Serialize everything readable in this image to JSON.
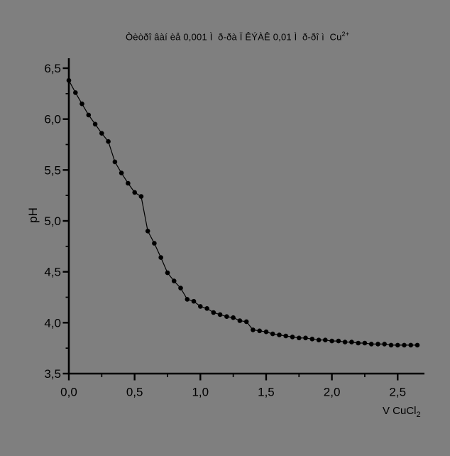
{
  "colors": {
    "background": "#7f7f7f",
    "foreground": "#000000"
  },
  "chart": {
    "title": {
      "text": "Òèòðî âàí èå 0,001 Ì  ð-ðà Ï ÊÝÀÊ 0,01 Ì  ð-ðî ì  Cu",
      "superscript": "2+"
    },
    "ylabel": "pH",
    "xlabel": {
      "text": "V CuCl",
      "subscript": "2"
    }
  },
  "chart_data": {
    "type": "line",
    "title": "Òèòðî âàí èå 0,001 Ì ð-ðà Ï ÊÝÀÊ 0,01 Ì ð-ðî ì Cu2+",
    "xlabel": "V CuCl2",
    "ylabel": "pH",
    "xlim": [
      0,
      2.7
    ],
    "ylim": [
      3.5,
      6.6
    ],
    "grid": false,
    "legend": false,
    "marker": "filled-circle",
    "line_color": "#000000",
    "marker_color": "#000000",
    "x_major_ticks": [
      0.0,
      0.5,
      1.0,
      1.5,
      2.0,
      2.5
    ],
    "x_tick_labels": [
      "0,0",
      "0,5",
      "1,0",
      "1,5",
      "2,0",
      "2,5"
    ],
    "x_minor_ticks": [
      0.25,
      0.75,
      1.25,
      1.75,
      2.25
    ],
    "y_major_ticks": [
      6.5,
      6.0,
      5.5,
      5.0,
      4.5,
      4.0,
      3.5
    ],
    "y_tick_labels": [
      "6,5",
      "6,0",
      "5,5",
      "5,0",
      "4,5",
      "4,0",
      "3,5"
    ],
    "y_minor_ticks": [
      6.25,
      5.75,
      5.25,
      4.75,
      4.25,
      3.75
    ],
    "series": [
      {
        "name": "pH vs V CuCl2",
        "x": [
          0.0,
          0.05,
          0.1,
          0.15,
          0.2,
          0.25,
          0.3,
          0.35,
          0.4,
          0.45,
          0.5,
          0.55,
          0.6,
          0.65,
          0.7,
          0.75,
          0.8,
          0.85,
          0.9,
          0.95,
          1.0,
          1.05,
          1.1,
          1.15,
          1.2,
          1.25,
          1.3,
          1.35,
          1.4,
          1.45,
          1.5,
          1.55,
          1.6,
          1.65,
          1.7,
          1.75,
          1.8,
          1.85,
          1.9,
          1.95,
          2.0,
          2.05,
          2.1,
          2.15,
          2.2,
          2.25,
          2.3,
          2.35,
          2.4,
          2.45,
          2.5,
          2.55,
          2.6,
          2.65
        ],
        "y": [
          6.38,
          6.26,
          6.15,
          6.04,
          5.95,
          5.86,
          5.78,
          5.58,
          5.47,
          5.37,
          5.28,
          5.24,
          4.9,
          4.78,
          4.64,
          4.49,
          4.41,
          4.34,
          4.23,
          4.21,
          4.16,
          4.14,
          4.1,
          4.08,
          4.06,
          4.05,
          4.02,
          4.01,
          3.93,
          3.92,
          3.91,
          3.89,
          3.88,
          3.87,
          3.86,
          3.85,
          3.85,
          3.84,
          3.83,
          3.83,
          3.82,
          3.82,
          3.81,
          3.81,
          3.8,
          3.8,
          3.79,
          3.79,
          3.79,
          3.78,
          3.78,
          3.78,
          3.78,
          3.78
        ]
      }
    ]
  }
}
